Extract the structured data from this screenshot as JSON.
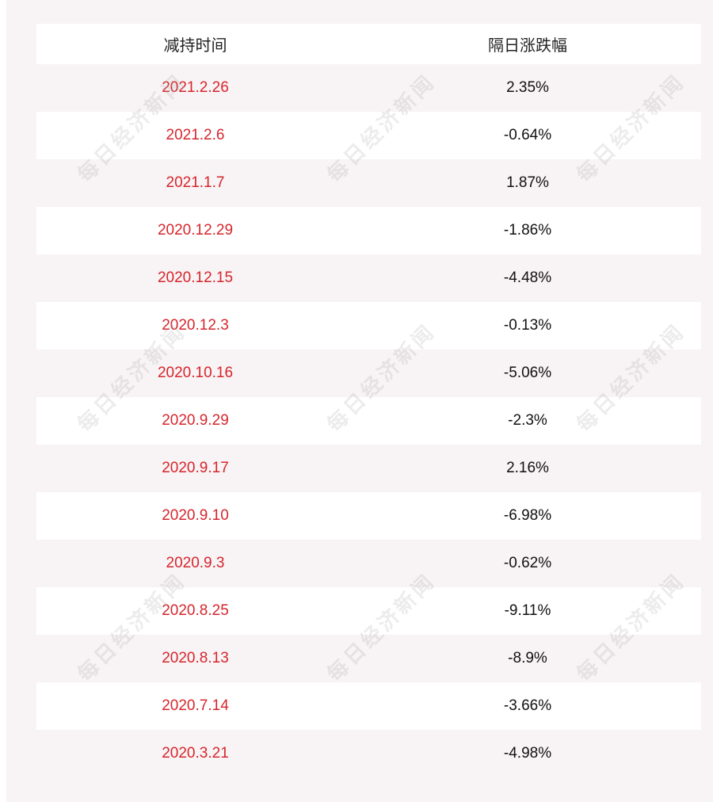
{
  "table": {
    "headers": [
      "减持时间",
      "隔日涨跌幅"
    ],
    "rows": [
      {
        "date": "2021.2.26",
        "change": "2.35%"
      },
      {
        "date": "2021.2.6",
        "change": "-0.64%"
      },
      {
        "date": "2021.1.7",
        "change": "1.87%"
      },
      {
        "date": "2020.12.29",
        "change": "-1.86%"
      },
      {
        "date": "2020.12.15",
        "change": "-4.48%"
      },
      {
        "date": "2020.12.3",
        "change": "-0.13%"
      },
      {
        "date": "2020.10.16",
        "change": "-5.06%"
      },
      {
        "date": "2020.9.29",
        "change": "-2.3%"
      },
      {
        "date": "2020.9.17",
        "change": "2.16%"
      },
      {
        "date": "2020.9.10",
        "change": "-6.98%"
      },
      {
        "date": "2020.9.3",
        "change": "-0.62%"
      },
      {
        "date": "2020.8.25",
        "change": "-9.11%"
      },
      {
        "date": "2020.8.13",
        "change": "-8.9%"
      },
      {
        "date": "2020.7.14",
        "change": "-3.66%"
      },
      {
        "date": "2020.3.21",
        "change": "-4.98%"
      }
    ]
  },
  "watermark": "每日经济新闻",
  "colors": {
    "date_text": "#d6262d",
    "value_text": "#111111",
    "panel_bg": "#f8f3f4",
    "row_alt_bg": "#ffffff"
  }
}
